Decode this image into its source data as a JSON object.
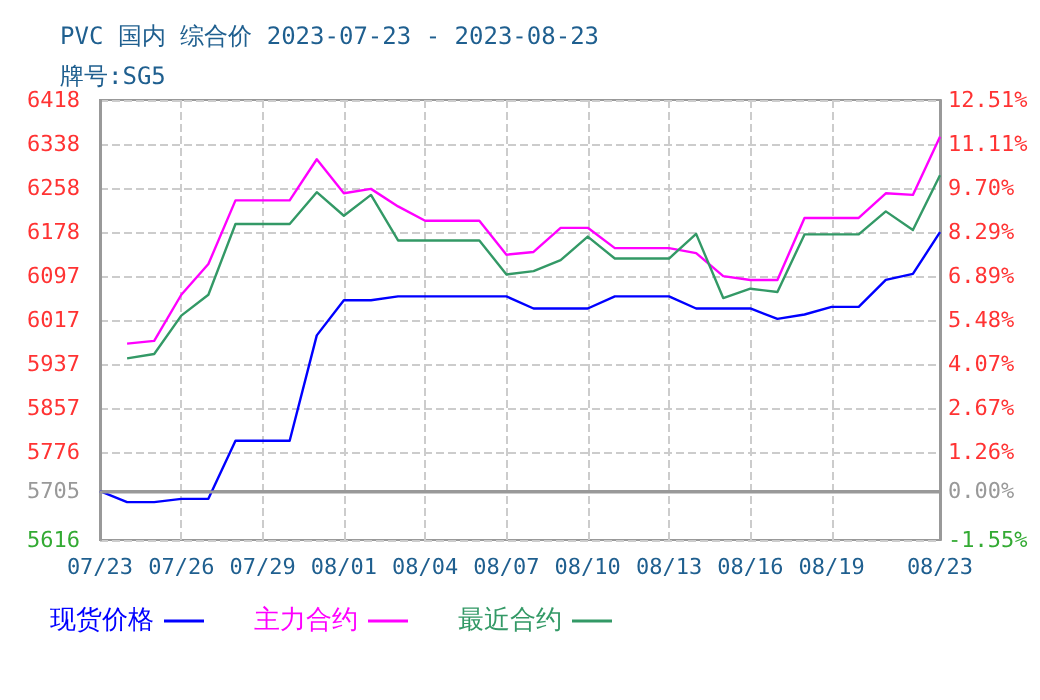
{
  "chart_data": {
    "type": "line",
    "title": "PVC 国内 综合价 2023-07-23 - 2023-08-23",
    "subtitle": "牌号:SG5",
    "x": [
      "2023-07-23",
      "2023-07-24",
      "2023-07-25",
      "2023-07-26",
      "2023-07-27",
      "2023-07-28",
      "2023-07-29",
      "2023-07-30",
      "2023-07-31",
      "2023-08-01",
      "2023-08-02",
      "2023-08-03",
      "2023-08-04",
      "2023-08-05",
      "2023-08-06",
      "2023-08-07",
      "2023-08-08",
      "2023-08-09",
      "2023-08-10",
      "2023-08-11",
      "2023-08-12",
      "2023-08-13",
      "2023-08-14",
      "2023-08-15",
      "2023-08-16",
      "2023-08-17",
      "2023-08-18",
      "2023-08-19",
      "2023-08-20",
      "2023-08-21",
      "2023-08-22",
      "2023-08-23"
    ],
    "series": [
      {
        "name": "现货价格",
        "color": "#0000ff",
        "values": [
          5705,
          5685,
          5685,
          5691,
          5691,
          5797,
          5797,
          5797,
          5989,
          6053,
          6053,
          6060,
          6060,
          6060,
          6060,
          6060,
          6038,
          6038,
          6038,
          6060,
          6060,
          6060,
          6038,
          6038,
          6038,
          6019,
          6027,
          6041,
          6041,
          6090,
          6101,
          6177
        ]
      },
      {
        "name": "主力合约",
        "color": "#ff00ff",
        "values": [
          null,
          5974,
          5979,
          6063,
          6119,
          6235,
          6235,
          6235,
          6310,
          6248,
          6256,
          6224,
          6198,
          6198,
          6198,
          6136,
          6141,
          6185,
          6185,
          6148,
          6148,
          6148,
          6139,
          6097,
          6090,
          6090,
          6203,
          6203,
          6203,
          6248,
          6245,
          6351
        ]
      },
      {
        "name": "最近合约",
        "color": "#339966",
        "values": [
          null,
          5947,
          5955,
          6025,
          6063,
          6192,
          6192,
          6192,
          6250,
          6207,
          6245,
          6162,
          6162,
          6162,
          6162,
          6100,
          6106,
          6126,
          6169,
          6129,
          6129,
          6129,
          6174,
          6057,
          6074,
          6068,
          6173,
          6173,
          6173,
          6215,
          6181,
          6281
        ]
      }
    ],
    "xlim": [
      "2023-07-23",
      "2023-08-23"
    ],
    "xticks": [
      {
        "value": "2023-07-23",
        "label": "07/23"
      },
      {
        "value": "2023-07-26",
        "label": "07/26"
      },
      {
        "value": "2023-07-29",
        "label": "07/29"
      },
      {
        "value": "2023-08-01",
        "label": "08/01"
      },
      {
        "value": "2023-08-04",
        "label": "08/04"
      },
      {
        "value": "2023-08-07",
        "label": "08/07"
      },
      {
        "value": "2023-08-10",
        "label": "08/10"
      },
      {
        "value": "2023-08-13",
        "label": "08/13"
      },
      {
        "value": "2023-08-16",
        "label": "08/16"
      },
      {
        "value": "2023-08-19",
        "label": "08/19"
      },
      {
        "value": "2023-08-23",
        "label": "08/23"
      }
    ],
    "ylim": [
      5616,
      6418
    ],
    "yticks": [
      5616,
      5705,
      5776,
      5857,
      5937,
      6017,
      6097,
      6178,
      6258,
      6338,
      6418
    ],
    "y2lim": [
      -1.55,
      12.51
    ],
    "y2ticks": [
      {
        "value": -1.55,
        "label": "-1.55%"
      },
      {
        "value": 0,
        "label": "0.00%"
      },
      {
        "value": 1.26,
        "label": "1.26%"
      },
      {
        "value": 2.67,
        "label": "2.67%"
      },
      {
        "value": 4.07,
        "label": "4.07%"
      },
      {
        "value": 5.48,
        "label": "5.48%"
      },
      {
        "value": 6.89,
        "label": "6.89%"
      },
      {
        "value": 8.29,
        "label": "8.29%"
      },
      {
        "value": 9.7,
        "label": "9.70%"
      },
      {
        "value": 11.11,
        "label": "11.11%"
      },
      {
        "value": 12.51,
        "label": "12.51%"
      }
    ],
    "ref_lines": [
      {
        "axis": "y",
        "value": 5705,
        "label": null,
        "color": "#999999"
      }
    ],
    "grid": true,
    "legend": "bottom",
    "marker": "none",
    "line_style": "solid"
  }
}
